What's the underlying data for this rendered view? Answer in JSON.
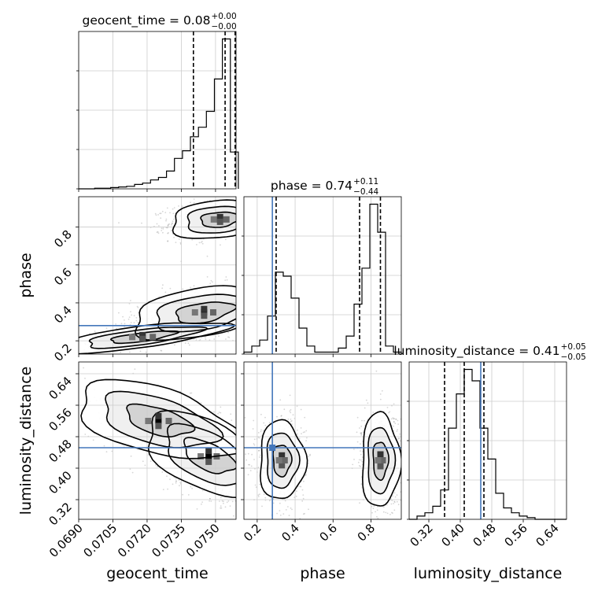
{
  "chart_data": {
    "type": "corner",
    "colors": {
      "truth": "#4477bb",
      "line": "#000000",
      "grid": "#cccccc",
      "scatter": "#8a8a8a"
    },
    "parameters": [
      {
        "name": "geocent_time",
        "range": [
          0.069,
          0.0759
        ],
        "ticks": [
          "0.0690",
          "0.0705",
          "0.0720",
          "0.0735",
          "0.0750"
        ],
        "tick_values": [
          0.069,
          0.0705,
          0.072,
          0.0735,
          0.075
        ]
      },
      {
        "name": "phase",
        "range": [
          0.13,
          0.96
        ],
        "ticks": [
          "0.2",
          "0.4",
          "0.6",
          "0.8"
        ],
        "tick_values": [
          0.2,
          0.4,
          0.6,
          0.8
        ]
      },
      {
        "name": "luminosity_distance",
        "range": [
          0.27,
          0.67
        ],
        "ticks": [
          "0.32",
          "0.40",
          "0.48",
          "0.56",
          "0.64"
        ],
        "tick_values": [
          0.32,
          0.4,
          0.48,
          0.56,
          0.64
        ]
      }
    ],
    "diagonal": [
      {
        "param": "geocent_time",
        "title_main": "geocent_time = 0.08",
        "title_sup": "+0.00",
        "title_sub": "−0.00",
        "quantiles": [
          0.07403,
          0.07542,
          0.07586
        ],
        "truth": null,
        "hist_edges": [
          0.069,
          0.06935,
          0.0697,
          0.07005,
          0.0704,
          0.07075,
          0.0711,
          0.07145,
          0.0718,
          0.07215,
          0.0725,
          0.07285,
          0.0732,
          0.07355,
          0.0739,
          0.07425,
          0.0746,
          0.07495,
          0.0753,
          0.07565,
          0.076
        ],
        "hist_counts": [
          0,
          0,
          1,
          1,
          2,
          3,
          4,
          7,
          9,
          14,
          18,
          28,
          48,
          60,
          82,
          97,
          122,
          173,
          236,
          58
        ]
      },
      {
        "param": "phase",
        "title_main": "phase = 0.74",
        "title_sup": "+0.11",
        "title_sub": "−0.44",
        "quantiles": [
          0.3,
          0.74,
          0.85
        ],
        "truth": 0.28,
        "hist_edges": [
          0.13,
          0.1715,
          0.213,
          0.2545,
          0.296,
          0.3375,
          0.379,
          0.4205,
          0.462,
          0.5035,
          0.545,
          0.5865,
          0.628,
          0.6695,
          0.711,
          0.7525,
          0.794,
          0.8355,
          0.877,
          0.9185,
          0.96
        ],
        "hist_counts": [
          2,
          8,
          14,
          38,
          82,
          78,
          56,
          26,
          8,
          2,
          2,
          2,
          6,
          18,
          50,
          86,
          150,
          122,
          8,
          2
        ]
      },
      {
        "param": "luminosity_distance",
        "title_main": "luminosity_distance = 0.41",
        "title_sup": "+0.05",
        "title_sub": "−0.05",
        "quantiles": [
          0.36,
          0.41,
          0.46
        ],
        "truth": 0.452,
        "hist_edges": [
          0.27,
          0.29,
          0.31,
          0.33,
          0.35,
          0.37,
          0.39,
          0.41,
          0.43,
          0.45,
          0.47,
          0.49,
          0.51,
          0.53,
          0.55,
          0.57,
          0.59,
          0.61,
          0.63,
          0.65,
          0.67
        ],
        "hist_counts": [
          0,
          2,
          4,
          8,
          18,
          56,
          77,
          92,
          85,
          56,
          37,
          16,
          7,
          4,
          2,
          1,
          0,
          0,
          0,
          0
        ]
      }
    ],
    "panels_2d": [
      {
        "x": "geocent_time",
        "y": "phase",
        "truth_x": null,
        "truth_y": 0.28,
        "clusters": [
          {
            "cx": 0.0752,
            "cy": 0.84,
            "sx": 0.0011,
            "sy": 0.05,
            "n": 1100,
            "corr": 0.2
          },
          {
            "cx": 0.0745,
            "cy": 0.35,
            "sx": 0.0016,
            "sy": 0.07,
            "n": 850,
            "corr": 0.4
          },
          {
            "cx": 0.0718,
            "cy": 0.22,
            "sx": 0.0018,
            "sy": 0.04,
            "n": 250,
            "corr": 0.7
          }
        ]
      },
      {
        "x": "geocent_time",
        "y": "luminosity_distance",
        "truth_x": null,
        "truth_y": 0.452,
        "clusters": [
          {
            "cx": 0.0747,
            "cy": 0.43,
            "sx": 0.0014,
            "sy": 0.055,
            "n": 1700,
            "corr": -0.55
          },
          {
            "cx": 0.0725,
            "cy": 0.52,
            "sx": 0.0018,
            "sy": 0.05,
            "n": 300,
            "corr": -0.5
          }
        ]
      },
      {
        "x": "phase",
        "y": "luminosity_distance",
        "truth_x": 0.28,
        "truth_y": 0.452,
        "clusters": [
          {
            "cx": 0.33,
            "cy": 0.42,
            "sx": 0.06,
            "sy": 0.05,
            "n": 900,
            "corr": 0.0
          },
          {
            "cx": 0.85,
            "cy": 0.42,
            "sx": 0.05,
            "sy": 0.06,
            "n": 1100,
            "corr": 0.0
          }
        ]
      }
    ]
  }
}
